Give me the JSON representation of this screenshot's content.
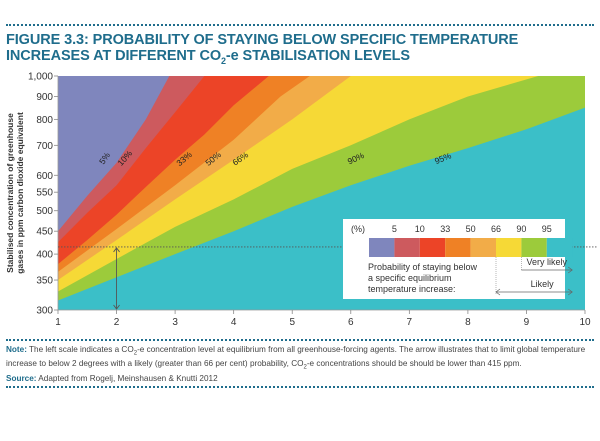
{
  "figure": {
    "number_label": "FIGURE 3.3:",
    "title_part1": " PROBABILITY OF STAYING BELOW SPECIFIC TEMPERATURE INCREASES AT DIFFERENT CO",
    "title_sub": "2",
    "title_part2": "-e STABILISATION LEVELS"
  },
  "note": {
    "label": "Note:",
    "text_part1": " The left scale indicates a CO",
    "sub1": "2",
    "text_part2": "-e concentration level at equilibrium from all greenhouse-forcing agents. The arrow illustrates that to limit global temperature increase to below 2 degrees with a likely (greater than 66 per cent) probability, CO",
    "sub2": "2",
    "text_part3": "-e concentrations should be should be lower than 415 ppm."
  },
  "source": {
    "label": "Source:",
    "text": " Adapted from Rogelj, Meinshausen & Knutti 2012"
  },
  "chart_data": {
    "type": "area",
    "title": "Probability of staying below specific temperature increases at different CO2-e stabilisation levels",
    "xlabel": "",
    "ylabel_line1": "Stabilised concentration of greenhouse",
    "ylabel_line2": "gases in ppm carbon dioxide equivalent",
    "xlim": [
      1,
      10
    ],
    "ylim": [
      300,
      1000
    ],
    "yscale": "log",
    "x_ticks": [
      "1",
      "2",
      "3",
      "4",
      "5",
      "6",
      "7",
      "8",
      "9",
      "10"
    ],
    "x_tick_values": [
      1,
      2,
      3,
      4,
      5,
      6,
      7,
      8,
      9,
      10
    ],
    "y_ticks": [
      "300",
      "350",
      "400",
      "450",
      "500",
      "550",
      "600",
      "700",
      "800",
      "900",
      "1,000"
    ],
    "y_tick_values": [
      300,
      350,
      400,
      450,
      500,
      550,
      600,
      700,
      800,
      900,
      1000
    ],
    "grid": false,
    "bands": [
      {
        "name": "<5%",
        "color": "#7f86bd"
      },
      {
        "name": "5-10%",
        "color": "#cd5a5e"
      },
      {
        "name": "10-33%",
        "color": "#ec4427"
      },
      {
        "name": "33-50%",
        "color": "#ef8125"
      },
      {
        "name": "50-66%",
        "color": "#f2ac48"
      },
      {
        "name": "66-90%",
        "color": "#f6d936"
      },
      {
        "name": "90-95%",
        "color": "#9ccb3b"
      },
      {
        "name": ">95%",
        "color": "#3bbfc8"
      }
    ],
    "boundaries": [
      {
        "label": "5%",
        "points": [
          [
            1,
            450
          ],
          [
            1.5,
            540
          ],
          [
            2,
            640
          ],
          [
            2.5,
            800
          ],
          [
            2.9,
            1000
          ]
        ],
        "label_at": [
          1.85,
          665
        ]
      },
      {
        "label": "10%",
        "points": [
          [
            1,
            425
          ],
          [
            1.5,
            495
          ],
          [
            2,
            570
          ],
          [
            2.5,
            690
          ],
          [
            3,
            830
          ],
          [
            3.5,
            1000
          ]
        ],
        "label_at": [
          2.25,
          660
        ]
      },
      {
        "label": "33%",
        "points": [
          [
            1,
            380
          ],
          [
            1.5,
            430
          ],
          [
            2,
            490
          ],
          [
            2.5,
            565
          ],
          [
            3,
            650
          ],
          [
            3.5,
            740
          ],
          [
            4,
            860
          ],
          [
            4.6,
            1000
          ]
        ],
        "label_at": [
          3.2,
          660
        ]
      },
      {
        "label": "50%",
        "points": [
          [
            1,
            365
          ],
          [
            2,
            455
          ],
          [
            3,
            570
          ],
          [
            4,
            720
          ],
          [
            4.8,
            900
          ],
          [
            5.3,
            1000
          ]
        ],
        "label_at": [
          3.7,
          665
        ]
      },
      {
        "label": "66%",
        "points": [
          [
            1,
            350
          ],
          [
            2,
            430
          ],
          [
            3,
            530
          ],
          [
            4,
            650
          ],
          [
            5,
            800
          ],
          [
            6,
            1000
          ]
        ],
        "label_at": [
          4.2,
          658
        ]
      },
      {
        "label": "90%",
        "points": [
          [
            1,
            330
          ],
          [
            2,
            390
          ],
          [
            3,
            460
          ],
          [
            4,
            530
          ],
          [
            5,
            620
          ],
          [
            6,
            700
          ],
          [
            7,
            800
          ],
          [
            8,
            900
          ],
          [
            9.2,
            1000
          ]
        ],
        "label_at": [
          6.1,
          660
        ]
      },
      {
        "label": "95%",
        "points": [
          [
            1,
            315
          ],
          [
            2,
            355
          ],
          [
            3,
            400
          ],
          [
            4,
            450
          ],
          [
            5,
            510
          ],
          [
            6,
            570
          ],
          [
            7,
            630
          ],
          [
            8,
            690
          ],
          [
            9,
            760
          ],
          [
            10,
            850
          ]
        ],
        "label_at": [
          7.6,
          660
        ]
      }
    ],
    "annotation": {
      "threshold_ppm": 415,
      "arrow_temperature": 2,
      "description": "Likely (>66%) staying below 2 degrees requires < 415 ppm"
    },
    "legend": {
      "placement": "bottom-right",
      "header": "(%)",
      "scale_labels": [
        "5",
        "10",
        "33",
        "50",
        "66",
        "90",
        "95"
      ],
      "caption_line1": "Probability of staying below",
      "caption_line2": "a specific equilibrium",
      "caption_line3": "temperature increase:",
      "very_likely_label": "Very likely",
      "likely_label": "Likely"
    }
  }
}
